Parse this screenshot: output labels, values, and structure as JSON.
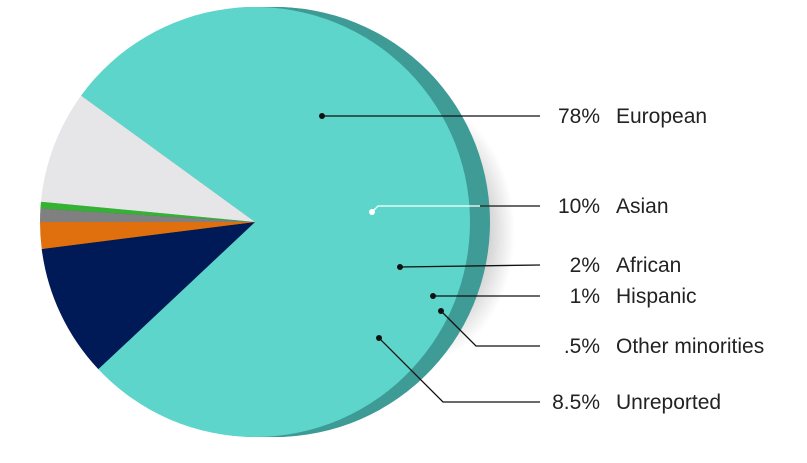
{
  "chart_data": {
    "type": "pie",
    "title": "",
    "slices": [
      {
        "pct_label": "78%",
        "name": "European",
        "value": 78,
        "color": "#5dd5cb",
        "side": "#3e9b95"
      },
      {
        "pct_label": "10%",
        "name": "Asian",
        "value": 10,
        "color": "#001a57",
        "side": "#00103a"
      },
      {
        "pct_label": "2%",
        "name": "African",
        "value": 2,
        "color": "#e0700e",
        "side": "#a35008"
      },
      {
        "pct_label": "1%",
        "name": "Hispanic",
        "value": 1,
        "color": "#808080",
        "side": "#5a5a5a"
      },
      {
        "pct_label": ".5%",
        "name": "Other minorities",
        "value": 0.5,
        "color": "#33b233",
        "side": "#1f7a1f"
      },
      {
        "pct_label": "8.5%",
        "name": "Unreported",
        "value": 8.5,
        "color": "#e6e6e9",
        "side": "#8a8a8a"
      }
    ],
    "legend": "right-side callouts"
  }
}
